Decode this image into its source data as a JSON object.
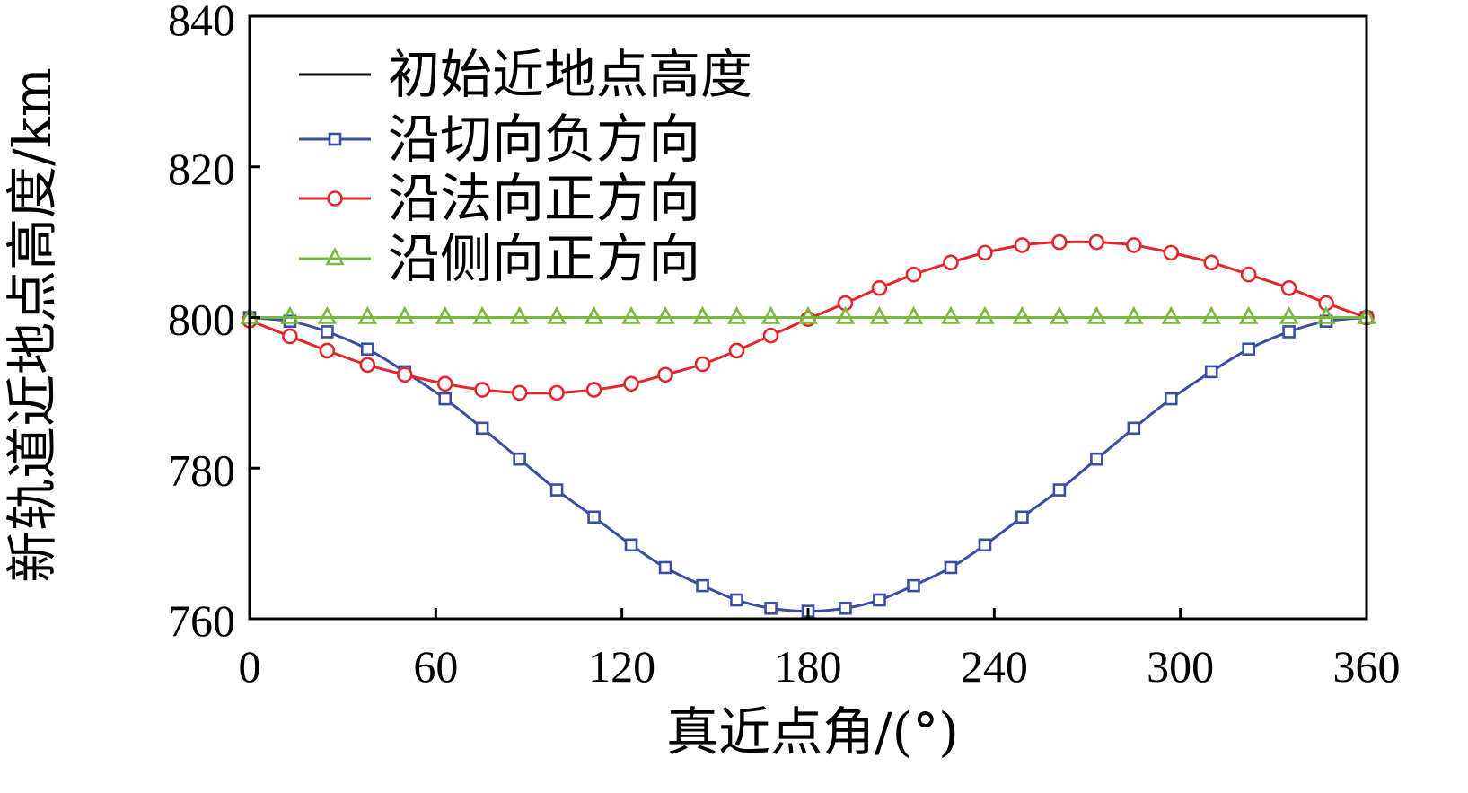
{
  "chart_data": {
    "type": "line",
    "title": "",
    "xlabel": "真近点角/(°)",
    "ylabel": "新轨道近地点高度/km",
    "xlim": [
      0,
      360
    ],
    "ylim": [
      760,
      840
    ],
    "xticks": [
      0,
      60,
      120,
      180,
      240,
      300,
      360
    ],
    "yticks": [
      760,
      780,
      800,
      820,
      840
    ],
    "xtick_labels": [
      "0",
      "60",
      "120",
      "180",
      "240",
      "300",
      "360"
    ],
    "ytick_labels": [
      "760",
      "780",
      "800",
      "820",
      "840"
    ],
    "grid": false,
    "legend_position": "upper-left",
    "x": [
      0,
      13,
      25,
      38,
      50,
      63,
      75,
      87,
      99,
      111,
      123,
      134,
      146,
      157,
      168,
      180,
      192,
      203,
      214,
      226,
      237,
      249,
      261,
      273,
      285,
      297,
      310,
      322,
      335,
      347,
      360
    ],
    "series": [
      {
        "name": "初始近地点高度",
        "color": "#000000",
        "marker": "none",
        "x": [
          0,
          360
        ],
        "values": [
          800,
          800
        ]
      },
      {
        "name": "沿切向负方向",
        "color": "#3A4FA3",
        "marker": "square",
        "values": [
          800.0,
          799.5,
          798.1,
          795.8,
          792.8,
          789.2,
          785.3,
          781.2,
          777.1,
          773.5,
          769.8,
          766.8,
          764.4,
          762.5,
          761.4,
          761.0,
          761.4,
          762.5,
          764.4,
          766.8,
          769.8,
          773.5,
          777.1,
          781.2,
          785.3,
          789.2,
          792.8,
          795.8,
          798.1,
          799.5,
          800.0
        ]
      },
      {
        "name": "沿法向正方向",
        "color": "#E4262C",
        "marker": "circle",
        "values": [
          799.6,
          797.5,
          795.6,
          793.7,
          792.4,
          791.2,
          790.4,
          790.0,
          790.0,
          790.4,
          791.2,
          792.4,
          793.8,
          795.6,
          797.6,
          799.8,
          801.9,
          803.9,
          805.7,
          807.3,
          808.6,
          809.6,
          810.0,
          810.0,
          809.6,
          808.6,
          807.3,
          805.7,
          803.9,
          801.9,
          800.0
        ]
      },
      {
        "name": "沿侧向正方向",
        "color": "#77B83F",
        "marker": "triangle",
        "values": [
          800,
          800,
          800,
          800,
          800,
          800,
          800,
          800,
          800,
          800,
          800,
          800,
          800,
          800,
          800,
          800,
          800,
          800,
          800,
          800,
          800,
          800,
          800,
          800,
          800,
          800,
          800,
          800,
          800,
          800,
          800
        ]
      }
    ]
  }
}
